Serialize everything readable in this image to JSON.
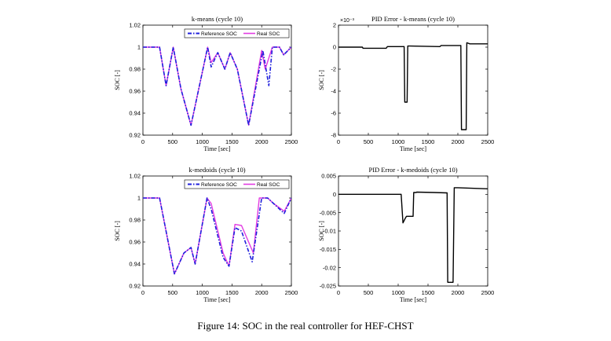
{
  "caption": "Figure 14: SOC in the real controller for HEF-CHST",
  "colors": {
    "reference": "#1f1fdc",
    "real": "#e23ce2",
    "error": "#000000",
    "axis": "#000000"
  },
  "chart_data": [
    {
      "type": "line",
      "title": "k-means (cycle 10)",
      "xlabel": "Time [sec]",
      "ylabel": "SOC [-]",
      "xlim": [
        0,
        2500
      ],
      "ylim": [
        0.92,
        1.02
      ],
      "xticks": [
        0,
        500,
        1000,
        1500,
        2000,
        2500
      ],
      "yticks": [
        0.92,
        0.94,
        0.96,
        0.98,
        1,
        1.02
      ],
      "xtick_labels": [
        "0",
        "500",
        "1000",
        "1500",
        "2000",
        "2500"
      ],
      "ytick_labels": [
        "0.92",
        "0.94",
        "0.96",
        "0.98",
        "1",
        "1.02"
      ],
      "legend": {
        "placement": "top-right",
        "entries": [
          "Reference SOC",
          "Real SOC"
        ]
      },
      "series": [
        {
          "name": "Reference SOC",
          "style": "dashdot",
          "x": [
            0,
            280,
            390,
            510,
            640,
            810,
            1090,
            1150,
            1260,
            1380,
            1470,
            1590,
            1780,
            2020,
            2120,
            2180,
            2300,
            2370,
            2500
          ],
          "y": [
            1.0,
            1.0,
            0.965,
            1.0,
            0.962,
            0.929,
            1.0,
            0.982,
            0.995,
            0.98,
            0.995,
            0.98,
            0.929,
            0.997,
            0.965,
            1.0,
            1.0,
            0.993,
            1.0
          ]
        },
        {
          "name": "Real SOC",
          "style": "solid",
          "x": [
            0,
            280,
            390,
            510,
            640,
            810,
            1090,
            1150,
            1260,
            1380,
            1470,
            1590,
            1780,
            2000,
            2060,
            2180,
            2300,
            2370,
            2500
          ],
          "y": [
            1.0,
            1.0,
            0.965,
            1.0,
            0.962,
            0.929,
            1.0,
            0.986,
            0.995,
            0.98,
            0.995,
            0.98,
            0.929,
            0.997,
            0.98,
            1.0,
            1.0,
            0.993,
            1.0
          ]
        }
      ]
    },
    {
      "type": "line",
      "title": "PID Error - k-means (cycle 10)",
      "xlabel": "Time [sec]",
      "ylabel": "SOC [-]",
      "xlim": [
        0,
        2500
      ],
      "ylim": [
        -8,
        2
      ],
      "exponent_label": "×10⁻³",
      "xticks": [
        0,
        500,
        1000,
        1500,
        2000,
        2500
      ],
      "yticks": [
        -8,
        -6,
        -4,
        -2,
        0,
        2
      ],
      "xtick_labels": [
        "0",
        "500",
        "1000",
        "1500",
        "2000",
        "2500"
      ],
      "ytick_labels": [
        "-8",
        "-6",
        "-4",
        "-2",
        "0",
        "2"
      ],
      "series": [
        {
          "style": "solid",
          "x": [
            0,
            400,
            410,
            800,
            820,
            1100,
            1110,
            1150,
            1160,
            1200,
            1700,
            1720,
            2050,
            2060,
            2140,
            2150,
            2200,
            2500
          ],
          "y": [
            0,
            0,
            -0.1,
            -0.1,
            0.05,
            0.05,
            -5,
            -5,
            0.1,
            0.1,
            0.05,
            0.15,
            0.15,
            -7.5,
            -7.5,
            0.4,
            0.3,
            0.3
          ]
        }
      ]
    },
    {
      "type": "line",
      "title": "k-medoids (cycle 10)",
      "xlabel": "Time [sec]",
      "ylabel": "SOC [-]",
      "xlim": [
        0,
        2500
      ],
      "ylim": [
        0.92,
        1.02
      ],
      "xticks": [
        0,
        500,
        1000,
        1500,
        2000,
        2500
      ],
      "yticks": [
        0.92,
        0.94,
        0.96,
        0.98,
        1,
        1.02
      ],
      "xtick_labels": [
        "0",
        "500",
        "1000",
        "1500",
        "2000",
        "2500"
      ],
      "ytick_labels": [
        "0.92",
        "0.94",
        "0.96",
        "0.98",
        "1",
        "1.02"
      ],
      "legend": {
        "placement": "top-right",
        "entries": [
          "Reference SOC",
          "Real SOC"
        ]
      },
      "series": [
        {
          "name": "Reference SOC",
          "style": "dashdot",
          "x": [
            0,
            280,
            530,
            690,
            810,
            880,
            1080,
            1150,
            1350,
            1450,
            1550,
            1660,
            1840,
            2000,
            2100,
            2200,
            2380,
            2500
          ],
          "y": [
            1.0,
            1.0,
            0.931,
            0.95,
            0.955,
            0.94,
            1.0,
            0.99,
            0.946,
            0.938,
            0.973,
            0.97,
            0.942,
            1.0,
            1.0,
            0.995,
            0.986,
            1.0
          ]
        },
        {
          "name": "Real SOC",
          "style": "solid",
          "x": [
            0,
            280,
            530,
            690,
            810,
            880,
            1080,
            1150,
            1350,
            1450,
            1550,
            1660,
            1860,
            1960,
            2100,
            2200,
            2380,
            2500
          ],
          "y": [
            1.0,
            1.0,
            0.931,
            0.95,
            0.955,
            0.94,
            1.0,
            0.995,
            0.95,
            0.938,
            0.976,
            0.975,
            0.95,
            1.0,
            1.0,
            0.995,
            0.988,
            1.0
          ]
        }
      ]
    },
    {
      "type": "line",
      "title": "PID Error - k-medoids (cycle 10)",
      "xlabel": "Time [sec]",
      "ylabel": "SOC [-]",
      "xlim": [
        0,
        2500
      ],
      "ylim": [
        -0.025,
        0.005
      ],
      "xticks": [
        0,
        500,
        1000,
        1500,
        2000,
        2500
      ],
      "yticks": [
        -0.025,
        -0.02,
        -0.015,
        -0.01,
        -0.005,
        0,
        0.005
      ],
      "xtick_labels": [
        "0",
        "500",
        "1000",
        "1500",
        "2000",
        "2500"
      ],
      "ytick_labels": [
        "-0.025",
        "-0.02",
        "-0.015",
        "-0.01",
        "-0.005",
        "0",
        "0.005"
      ],
      "series": [
        {
          "style": "solid",
          "x": [
            0,
            1050,
            1080,
            1120,
            1140,
            1250,
            1260,
            1300,
            1310,
            1600,
            1820,
            1830,
            1920,
            1940,
            2000,
            2500
          ],
          "y": [
            0,
            0,
            -0.0078,
            -0.0065,
            -0.006,
            -0.006,
            0.0005,
            0.0005,
            0.0006,
            0.0005,
            0.0004,
            -0.024,
            -0.024,
            0.0018,
            0.0018,
            0.0015
          ]
        }
      ]
    }
  ]
}
